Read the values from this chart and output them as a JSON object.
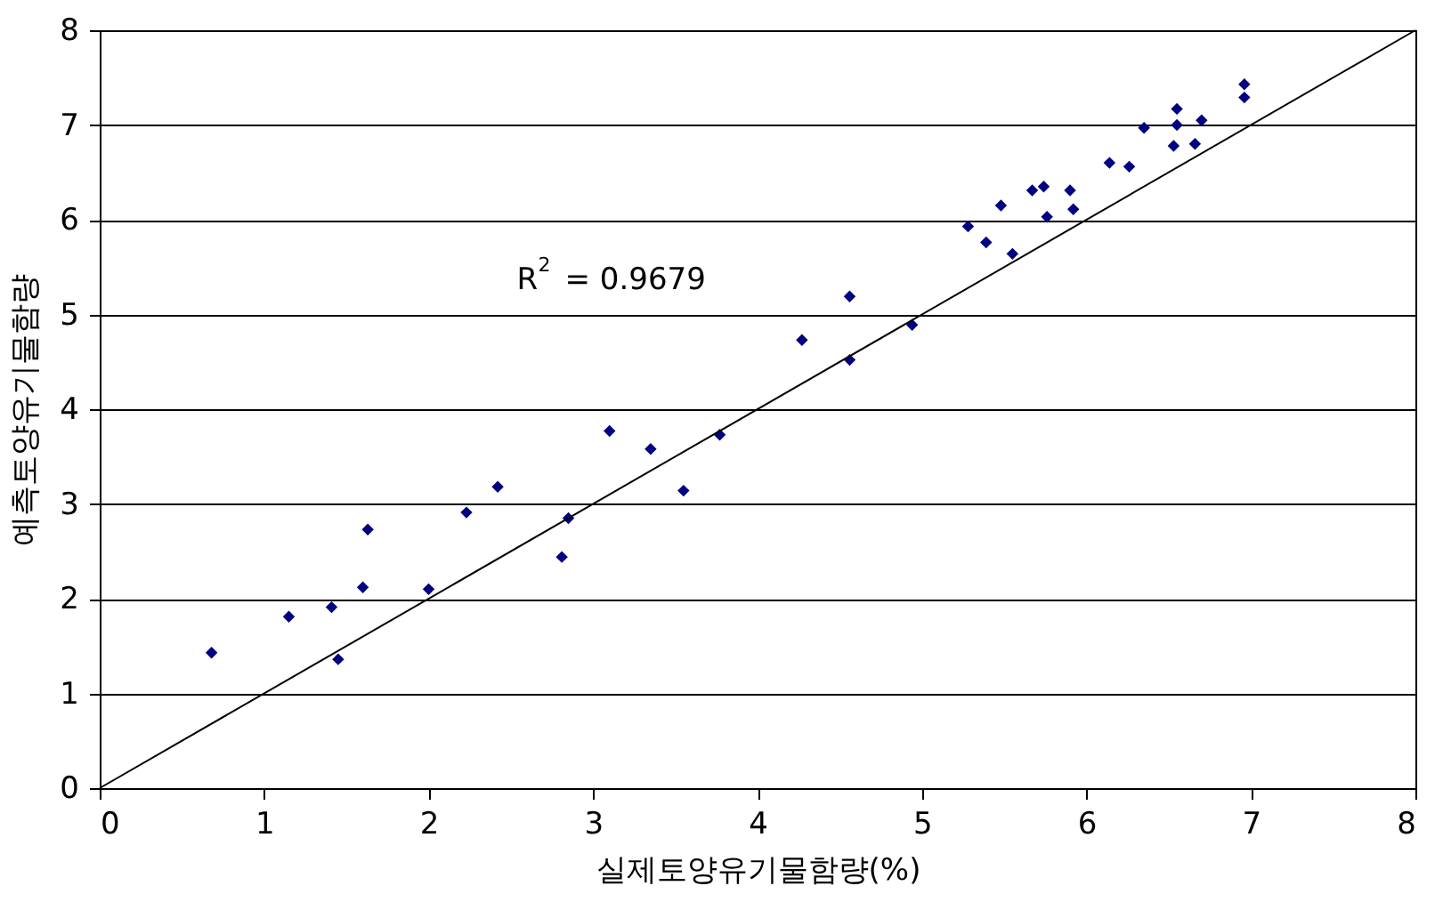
{
  "chart_data": {
    "type": "scatter",
    "xlabel": "실제토양유기물함량(%)",
    "ylabel": "예측토양유기물함량",
    "annotations": [
      "R$^{2}$ = 0.9679"
    ],
    "xlim": [
      0,
      8
    ],
    "ylim": [
      0,
      8
    ],
    "xticks": [
      0,
      1,
      2,
      3,
      4,
      5,
      6,
      7,
      8
    ],
    "yticks": [
      0,
      1,
      2,
      3,
      4,
      5,
      6,
      7,
      8
    ],
    "grid": "y",
    "marker": "diamond",
    "series": [
      {
        "color": "#000080",
        "x": [
          0.68,
          1.15,
          1.41,
          1.45,
          1.6,
          1.63,
          2.0,
          2.23,
          2.42,
          2.81,
          2.85,
          3.1,
          3.35,
          3.55,
          3.77,
          4.27,
          4.56,
          4.56,
          4.94,
          5.28,
          5.39,
          5.48,
          5.55,
          5.67,
          5.74,
          5.76,
          5.9,
          5.92,
          6.14,
          6.26,
          6.35,
          6.53,
          6.55,
          6.55,
          6.66,
          6.7,
          6.96,
          6.96
        ],
        "values": [
          1.43,
          1.81,
          1.91,
          1.36,
          2.12,
          2.73,
          2.1,
          2.91,
          3.18,
          2.44,
          2.85,
          3.77,
          3.58,
          3.14,
          3.73,
          4.73,
          5.19,
          4.52,
          4.89,
          5.93,
          5.76,
          6.15,
          5.64,
          6.31,
          6.35,
          6.03,
          6.31,
          6.11,
          6.6,
          6.56,
          6.97,
          6.78,
          7.17,
          7.0,
          6.8,
          7.05,
          7.43,
          7.29
        ]
      },
      {
        "type": "line",
        "color": "#000000",
        "x": [
          0,
          8
        ],
        "values": [
          0,
          8
        ],
        "marker": "none"
      }
    ]
  }
}
